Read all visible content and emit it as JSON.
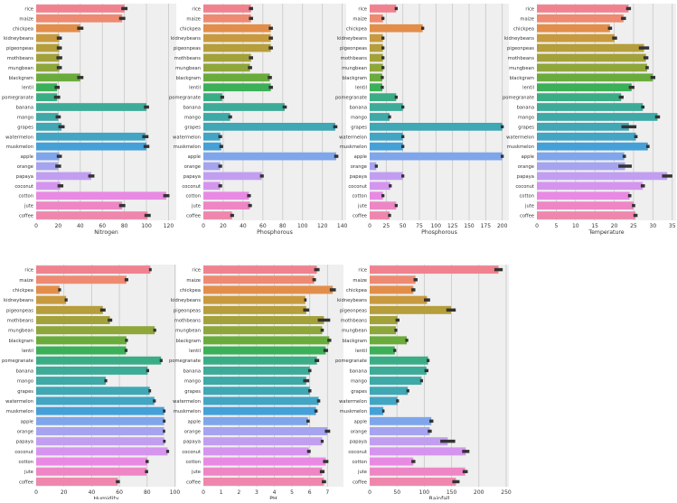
{
  "chart_data": [
    {
      "type": "bar",
      "orientation": "horizontal",
      "xlabel": "Nitrogen",
      "xlim": [
        0,
        127
      ],
      "ticks": [
        0,
        20,
        40,
        60,
        80,
        100,
        120
      ],
      "values": [
        80,
        78,
        40,
        21,
        21,
        21,
        21,
        40,
        19,
        19,
        100,
        20,
        23,
        99,
        100,
        21,
        20,
        50,
        22,
        118,
        78,
        101
      ],
      "errors": [
        2,
        2,
        2,
        1.5,
        1.5,
        1.8,
        1.5,
        2,
        1.5,
        2,
        1.5,
        1.5,
        2,
        2,
        1.8,
        1.5,
        1.8,
        2,
        1.8,
        2,
        2,
        2
      ]
    },
    {
      "type": "bar",
      "orientation": "horizontal",
      "xlabel": "Phosphorous",
      "xlim": [
        0,
        144
      ],
      "ticks": [
        0,
        20,
        40,
        60,
        80,
        100,
        120,
        140
      ],
      "values": [
        48,
        48,
        68,
        68,
        68,
        48,
        47,
        67,
        68,
        19,
        82,
        27,
        133,
        17,
        18,
        134,
        17,
        59,
        17,
        46,
        47,
        29
      ],
      "errors": [
        1.2,
        1.2,
        1.2,
        1.2,
        1.2,
        1.2,
        1.2,
        1.2,
        1.2,
        1,
        1.2,
        1,
        1.2,
        1,
        1,
        1.2,
        1,
        1,
        1,
        1,
        1,
        1
      ]
    },
    {
      "type": "bar",
      "orientation": "horizontal",
      "xlabel": "Phosphorous",
      "xlim": [
        0,
        210
      ],
      "ticks": [
        0,
        25,
        50,
        75,
        100,
        125,
        150,
        175,
        200
      ],
      "values": [
        40,
        20,
        80,
        20,
        20,
        20,
        20,
        19,
        19,
        40,
        50,
        30,
        200,
        50,
        50,
        200,
        10,
        50,
        31,
        20,
        40,
        30
      ],
      "errors": [
        0.9,
        0.9,
        0.9,
        0.9,
        0.9,
        0.9,
        0.9,
        0.9,
        0.9,
        0.9,
        0.9,
        0.9,
        0.9,
        0.9,
        0.9,
        0.9,
        0.9,
        0.9,
        0.9,
        0.9,
        0.9,
        0.9
      ]
    },
    {
      "type": "bar",
      "orientation": "horizontal",
      "xlabel": "Temperature",
      "xlim": [
        0,
        36
      ],
      "ticks": [
        0,
        5,
        10,
        15,
        20,
        25,
        30,
        35
      ],
      "values": [
        23.7,
        22.4,
        18.9,
        20.1,
        27.7,
        28.2,
        28.5,
        30,
        24.5,
        21.8,
        27.4,
        31.2,
        23.8,
        25.6,
        28.7,
        22.6,
        22.8,
        33.7,
        27.4,
        24,
        25,
        25.5
      ],
      "errors": [
        0.4,
        0.4,
        0.3,
        0.4,
        1.1,
        0.4,
        0.2,
        0.4,
        0.5,
        0.4,
        0.2,
        0.4,
        1.7,
        0.2,
        0.2,
        0.2,
        1.5,
        1.1,
        0.3,
        0.2,
        0.2,
        0.3
      ]
    },
    {
      "type": "bar",
      "orientation": "horizontal",
      "xlabel": "Humidity",
      "xlim": [
        0,
        101
      ],
      "ticks": [
        0,
        20,
        40,
        60,
        80,
        100
      ],
      "values": [
        82.3,
        65.1,
        16.9,
        21.6,
        48.1,
        53.2,
        85.5,
        65.1,
        64.8,
        90.1,
        80.4,
        50.2,
        81.9,
        85.2,
        92.3,
        92.3,
        92.2,
        92.4,
        94.8,
        80,
        79.6,
        58.9
      ],
      "errors": [
        0.3,
        0.7,
        0.4,
        0.4,
        1.3,
        1,
        0.4,
        0.4,
        0.4,
        0.4,
        0.4,
        0.4,
        0.3,
        0.4,
        0.3,
        0.3,
        0.2,
        0.3,
        0.4,
        0.5,
        0.5,
        0.8
      ]
    },
    {
      "type": "bar",
      "orientation": "horizontal",
      "xlabel": "PH",
      "xlim": [
        0,
        7.9
      ],
      "ticks": [
        0,
        1,
        2,
        3,
        4,
        5,
        6,
        7
      ],
      "values": [
        6.4,
        6.25,
        7.3,
        5.75,
        5.8,
        6.8,
        6.7,
        7.1,
        6.9,
        6.4,
        6.0,
        5.8,
        6.0,
        6.5,
        6.35,
        5.9,
        7.0,
        6.7,
        5.95,
        6.9,
        6.7,
        6.8
      ],
      "errors": [
        0.1,
        0.05,
        0.12,
        0.02,
        0.12,
        0.3,
        0.04,
        0.06,
        0.08,
        0.08,
        0.04,
        0.12,
        0.04,
        0.04,
        0.04,
        0.04,
        0.1,
        0.03,
        0.05,
        0.1,
        0.08,
        0.07
      ]
    },
    {
      "type": "bar",
      "orientation": "horizontal",
      "xlabel": "Rainfall",
      "xlim": [
        0,
        255
      ],
      "ticks": [
        0,
        50,
        100,
        150,
        200,
        250
      ],
      "values": [
        236,
        84,
        80,
        105,
        149,
        51,
        48,
        68,
        46,
        107,
        104,
        95,
        70,
        51,
        25,
        113,
        110,
        143,
        176,
        80,
        175,
        158
      ],
      "errors": [
        6,
        2,
        2,
        4,
        7,
        2,
        1,
        1,
        1,
        1,
        2,
        1,
        1,
        1,
        0.5,
        2,
        2,
        12,
        5,
        2,
        3,
        5
      ]
    }
  ],
  "categories": [
    "rice",
    "maize",
    "chickpea",
    "kidneybeans",
    "pigeonpeas",
    "mothbeans",
    "mungbean",
    "blackgram",
    "lentil",
    "pomegranate",
    "banana",
    "mango",
    "grapes",
    "watermelon",
    "muskmelon",
    "apple",
    "orange",
    "papaya",
    "coconut",
    "cotton",
    "jute",
    "coffee"
  ],
  "colors": [
    "#f0828f",
    "#ee8a72",
    "#e28e4a",
    "#c89a3f",
    "#b59e3b",
    "#a3a23a",
    "#8fa63b",
    "#6aac3c",
    "#3cb058",
    "#3bad86",
    "#3dab98",
    "#3ea9a6",
    "#40a7b4",
    "#42a5c4",
    "#46a0d8",
    "#7fa6ea",
    "#a6a3ef",
    "#c29ef0",
    "#d595ef",
    "#e88ae3",
    "#ee86c6",
    "#ef86ad"
  ],
  "style": {
    "axes_background": "#efefef",
    "grid_color": "#c8c8c8",
    "error_bar_color": "#333333",
    "grid": true
  }
}
